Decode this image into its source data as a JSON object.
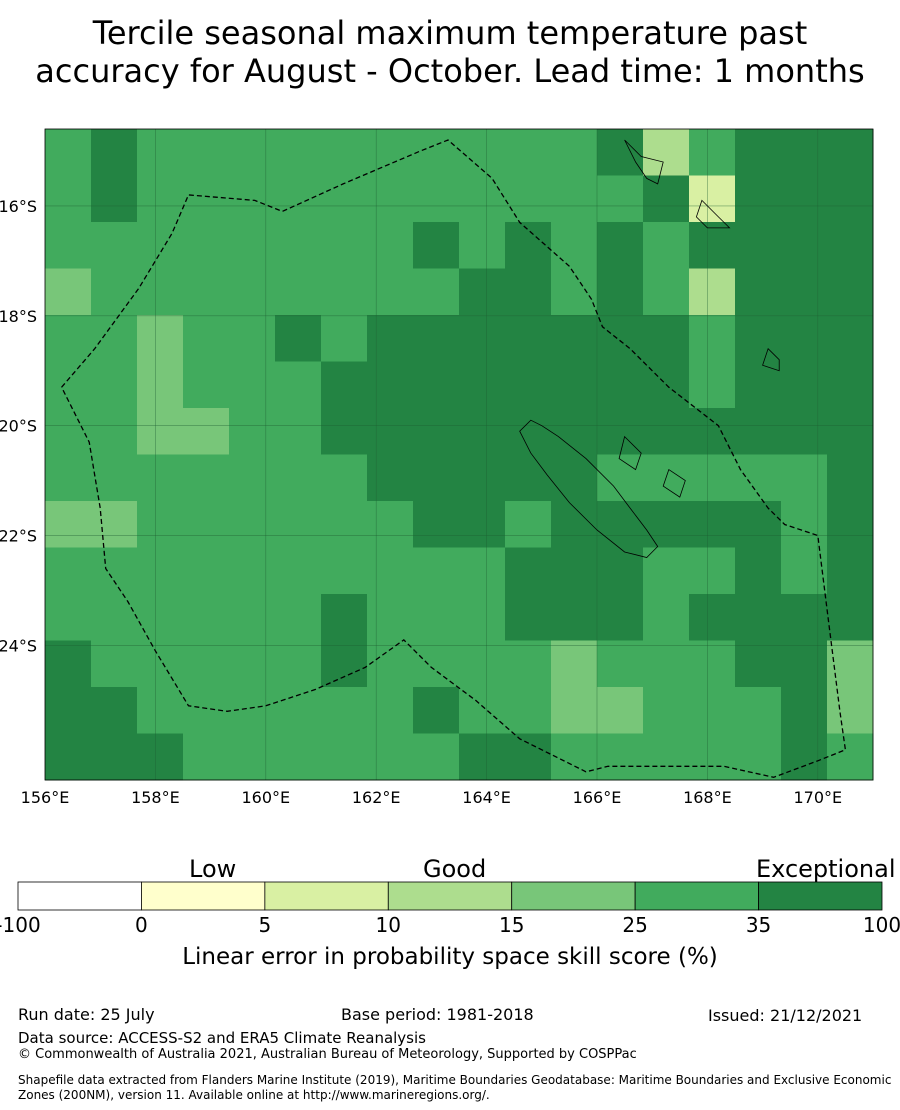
{
  "title": {
    "line1": "Tercile seasonal maximum temperature past",
    "line2": "accuracy for August - October. Lead time: 1 months"
  },
  "map": {
    "lon_labels": [
      "156°E",
      "158°E",
      "160°E",
      "162°E",
      "164°E",
      "166°E",
      "168°E",
      "170°E"
    ],
    "lat_labels": [
      "16°S",
      "18°S",
      "20°S",
      "22°S",
      "24°S"
    ],
    "lon_range": [
      156.0,
      171.0
    ],
    "lat_range": [
      -14.6,
      -26.45
    ],
    "cell_size_deg": 0.83,
    "cell_columns": 18,
    "cell_rows": 14,
    "grid_skill_class": [
      [
        5,
        6,
        5,
        5,
        5,
        5,
        5,
        5,
        5,
        5,
        5,
        5,
        6,
        3,
        5,
        6,
        6,
        6
      ],
      [
        5,
        6,
        5,
        5,
        5,
        5,
        5,
        5,
        5,
        5,
        5,
        5,
        5,
        6,
        2,
        6,
        6,
        6
      ],
      [
        5,
        5,
        5,
        5,
        5,
        5,
        5,
        5,
        6,
        5,
        6,
        5,
        6,
        5,
        6,
        6,
        6,
        6
      ],
      [
        4,
        5,
        5,
        5,
        5,
        5,
        5,
        5,
        5,
        6,
        6,
        5,
        6,
        5,
        3,
        6,
        6,
        6
      ],
      [
        5,
        5,
        4,
        5,
        5,
        6,
        5,
        6,
        6,
        6,
        6,
        6,
        6,
        6,
        5,
        6,
        6,
        6
      ],
      [
        5,
        5,
        4,
        5,
        5,
        5,
        6,
        6,
        6,
        6,
        6,
        6,
        6,
        6,
        5,
        6,
        6,
        6
      ],
      [
        5,
        5,
        4,
        4,
        5,
        5,
        6,
        6,
        6,
        6,
        6,
        6,
        6,
        6,
        6,
        6,
        6,
        6
      ],
      [
        5,
        5,
        5,
        5,
        5,
        5,
        5,
        6,
        6,
        6,
        6,
        6,
        5,
        5,
        5,
        5,
        5,
        6
      ],
      [
        4,
        4,
        5,
        5,
        5,
        5,
        5,
        5,
        6,
        6,
        5,
        6,
        6,
        6,
        6,
        6,
        5,
        6
      ],
      [
        5,
        5,
        5,
        5,
        5,
        5,
        5,
        5,
        5,
        5,
        6,
        6,
        6,
        5,
        5,
        6,
        5,
        6
      ],
      [
        5,
        5,
        5,
        5,
        5,
        5,
        6,
        5,
        5,
        5,
        6,
        6,
        6,
        5,
        6,
        6,
        6,
        6
      ],
      [
        6,
        5,
        5,
        5,
        5,
        5,
        6,
        5,
        5,
        5,
        5,
        4,
        5,
        5,
        5,
        6,
        6,
        4
      ],
      [
        6,
        6,
        5,
        5,
        5,
        5,
        5,
        5,
        6,
        5,
        5,
        4,
        4,
        5,
        5,
        5,
        6,
        4
      ],
      [
        6,
        6,
        6,
        5,
        5,
        5,
        5,
        5,
        5,
        6,
        6,
        5,
        5,
        5,
        5,
        5,
        6,
        5
      ]
    ],
    "eez_boundary": [
      [
        156.3,
        -19.3
      ],
      [
        156.9,
        -18.6
      ],
      [
        157.7,
        -17.5
      ],
      [
        158.3,
        -16.5
      ],
      [
        158.6,
        -15.8
      ],
      [
        159.8,
        -15.9
      ],
      [
        160.3,
        -16.1
      ],
      [
        161.4,
        -15.6
      ],
      [
        162.8,
        -15.0
      ],
      [
        163.3,
        -14.8
      ],
      [
        164.1,
        -15.5
      ],
      [
        164.6,
        -16.3
      ],
      [
        165.5,
        -17.1
      ],
      [
        165.9,
        -17.7
      ],
      [
        166.1,
        -18.2
      ],
      [
        166.6,
        -18.6
      ],
      [
        167.3,
        -19.3
      ],
      [
        168.2,
        -20.0
      ],
      [
        168.6,
        -20.8
      ],
      [
        169.1,
        -21.5
      ],
      [
        169.4,
        -21.8
      ],
      [
        170.0,
        -22.0
      ],
      [
        170.2,
        -23.6
      ],
      [
        170.4,
        -25.2
      ],
      [
        170.5,
        -25.9
      ],
      [
        170.0,
        -26.1
      ],
      [
        169.2,
        -26.4
      ],
      [
        168.3,
        -26.2
      ],
      [
        166.2,
        -26.2
      ],
      [
        165.8,
        -26.3
      ],
      [
        164.6,
        -25.7
      ],
      [
        163.8,
        -25.0
      ],
      [
        163.0,
        -24.4
      ],
      [
        162.5,
        -23.9
      ],
      [
        161.8,
        -24.4
      ],
      [
        160.9,
        -24.8
      ],
      [
        160.0,
        -25.1
      ],
      [
        159.3,
        -25.2
      ],
      [
        158.6,
        -25.1
      ],
      [
        158.0,
        -24.1
      ],
      [
        157.5,
        -23.2
      ],
      [
        157.1,
        -22.6
      ],
      [
        157.0,
        -21.5
      ],
      [
        156.8,
        -20.3
      ],
      [
        156.3,
        -19.3
      ]
    ],
    "islands": [
      [
        [
          165.0,
          -20.0
        ],
        [
          165.3,
          -20.2
        ],
        [
          165.8,
          -20.6
        ],
        [
          166.3,
          -21.1
        ],
        [
          166.6,
          -21.5
        ],
        [
          166.9,
          -21.9
        ],
        [
          167.1,
          -22.2
        ],
        [
          166.9,
          -22.4
        ],
        [
          166.5,
          -22.3
        ],
        [
          166.0,
          -21.9
        ],
        [
          165.5,
          -21.4
        ],
        [
          165.1,
          -20.9
        ],
        [
          164.8,
          -20.5
        ],
        [
          164.6,
          -20.1
        ],
        [
          164.8,
          -19.9
        ]
      ],
      [
        [
          166.5,
          -14.8
        ],
        [
          166.8,
          -15.1
        ],
        [
          167.2,
          -15.2
        ],
        [
          167.1,
          -15.6
        ],
        [
          166.9,
          -15.5
        ],
        [
          166.7,
          -15.2
        ]
      ],
      [
        [
          167.9,
          -15.9
        ],
        [
          168.2,
          -16.2
        ],
        [
          168.4,
          -16.4
        ],
        [
          168.0,
          -16.4
        ],
        [
          167.8,
          -16.2
        ]
      ],
      [
        [
          169.1,
          -18.6
        ],
        [
          169.3,
          -18.8
        ],
        [
          169.3,
          -19.0
        ],
        [
          169.0,
          -18.9
        ]
      ],
      [
        [
          166.5,
          -20.2
        ],
        [
          166.8,
          -20.5
        ],
        [
          166.7,
          -20.8
        ],
        [
          166.4,
          -20.6
        ]
      ],
      [
        [
          167.3,
          -20.8
        ],
        [
          167.6,
          -21.0
        ],
        [
          167.5,
          -21.3
        ],
        [
          167.2,
          -21.1
        ]
      ]
    ]
  },
  "legend": {
    "group_labels": [
      "Low",
      "Good",
      "Exceptional"
    ],
    "bins": [
      {
        "from": "-100",
        "to": "0",
        "color": "#ffffff"
      },
      {
        "from": "0",
        "to": "5",
        "color": "#ffffcc"
      },
      {
        "from": "5",
        "to": "10",
        "color": "#d9f0a3"
      },
      {
        "from": "10",
        "to": "15",
        "color": "#addd8e"
      },
      {
        "from": "15",
        "to": "25",
        "color": "#78c679"
      },
      {
        "from": "25",
        "to": "35",
        "color": "#41ab5d"
      },
      {
        "from": "35",
        "to": "100",
        "color": "#238443"
      }
    ],
    "tick_labels": [
      "-100",
      "0",
      "5",
      "10",
      "15",
      "25",
      "35",
      "100"
    ],
    "axis_label": "Linear error in probability space skill score (%)"
  },
  "footer": {
    "run_date": "Run date: 25 July",
    "base_period": "Base period: 1981-2018",
    "issued": "Issued: 21/12/2021",
    "data_source": "Data source: ACCESS-S2 and ERA5 Climate Reanalysis",
    "copyright": "© Commonwealth of Australia 2021, Australian Bureau of Meteorology, Supported by COSPPac",
    "shapefile_note": "Shapefile data extracted from Flanders Marine Institute (2019), Maritime Boundaries Geodatabase: Maritime Boundaries and Exclusive Economic Zones (200NM), version 11. Available online at http://www.marineregions.org/."
  }
}
